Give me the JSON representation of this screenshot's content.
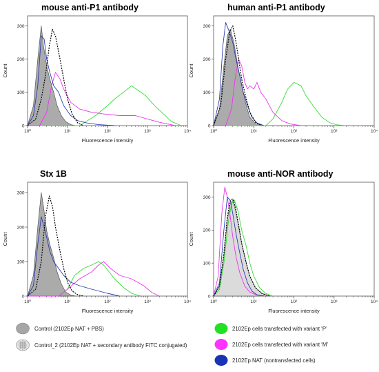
{
  "chart_data": [
    {
      "type": "area",
      "title": "mouse anti-P1 antibody",
      "xlabel": "Fluorescence intensity",
      "ylabel": "Count",
      "x_scale": "log",
      "xlim": [
        1,
        10000
      ],
      "ylim": [
        0,
        330
      ],
      "xticks": [
        "10⁰",
        "10¹",
        "10²",
        "10³",
        "10⁴"
      ],
      "yticks": [
        "0",
        "100",
        "200",
        "300"
      ],
      "series": [
        {
          "name": "Control (2102Ep NAT + PBS)",
          "key": "control",
          "x": [
            1,
            1.4,
            1.8,
            2.2,
            2.5,
            3,
            3.6,
            4.5,
            5.5,
            7,
            9,
            12,
            16
          ],
          "y": [
            0,
            60,
            200,
            300,
            240,
            180,
            140,
            100,
            60,
            30,
            12,
            3,
            0
          ]
        },
        {
          "name": "Control_2 (2102Ep NAT + secondary antibody FITC conjugated)",
          "key": "control2",
          "x": [
            1,
            1.6,
            2.2,
            2.8,
            3.5,
            4.2,
            5,
            6.5,
            8,
            10,
            13,
            18,
            25
          ],
          "y": [
            0,
            20,
            80,
            150,
            240,
            290,
            270,
            200,
            140,
            80,
            35,
            8,
            0
          ]
        },
        {
          "name": "2102Ep cells transfected with variant ‘P’",
          "key": "variantP",
          "x": [
            1,
            20,
            50,
            100,
            150,
            250,
            400,
            600,
            900,
            1500,
            2500,
            4000,
            7000
          ],
          "y": [
            0,
            0,
            30,
            60,
            80,
            100,
            120,
            105,
            90,
            60,
            35,
            12,
            0
          ]
        },
        {
          "name": "2102Ep cells transfected with variant ‘M’",
          "key": "variantM",
          "x": [
            1,
            2,
            3,
            4,
            5,
            6.5,
            8,
            12,
            20,
            40,
            80,
            200,
            500,
            1000,
            2000,
            5000
          ],
          "y": [
            0,
            0,
            40,
            120,
            160,
            140,
            110,
            70,
            50,
            40,
            35,
            30,
            30,
            20,
            10,
            0
          ]
        },
        {
          "name": "2102Ep NAT (nontransfected cells)",
          "key": "nat",
          "x": [
            1,
            1.4,
            1.8,
            2.2,
            2.6,
            3,
            3.6,
            4.5,
            6,
            8,
            12,
            18,
            30,
            60,
            150
          ],
          "y": [
            0,
            30,
            120,
            270,
            260,
            200,
            160,
            120,
            100,
            60,
            30,
            15,
            8,
            3,
            0
          ]
        }
      ]
    },
    {
      "type": "area",
      "title": "human anti-P1 antibody",
      "xlabel": "Fluorescence intensity",
      "ylabel": "Count",
      "x_scale": "log",
      "xlim": [
        1,
        10000
      ],
      "ylim": [
        0,
        330
      ],
      "xticks": [
        "10⁰",
        "10¹",
        "10²",
        "10³",
        "10⁴"
      ],
      "yticks": [
        "0",
        "100",
        "200",
        "300"
      ],
      "series": [
        {
          "name": "Control (2102Ep NAT + PBS)",
          "key": "control",
          "x": [
            1,
            1.4,
            1.8,
            2.2,
            2.6,
            3.2,
            4,
            5,
            6.5,
            8,
            11,
            16
          ],
          "y": [
            0,
            50,
            180,
            270,
            290,
            250,
            180,
            120,
            60,
            25,
            6,
            0
          ]
        },
        {
          "name": "Control_2 (2102Ep NAT + secondary antibody FITC conjugated)",
          "key": "control2",
          "x": [
            1,
            1.5,
            2,
            2.5,
            3,
            3.5,
            4.2,
            5,
            6.5,
            8,
            11,
            16
          ],
          "y": [
            0,
            60,
            200,
            280,
            300,
            260,
            200,
            140,
            80,
            40,
            10,
            0
          ]
        },
        {
          "name": "2102Ep cells transfected with variant ‘P’",
          "key": "variantP",
          "x": [
            1,
            20,
            30,
            50,
            70,
            100,
            150,
            200,
            300,
            500,
            800,
            1200,
            2000
          ],
          "y": [
            0,
            0,
            20,
            70,
            110,
            130,
            120,
            90,
            60,
            25,
            8,
            2,
            0
          ]
        },
        {
          "name": "2102Ep cells transfected with variant ‘M’",
          "key": "variantM",
          "x": [
            1,
            2,
            2.8,
            3.5,
            4.2,
            5,
            6,
            7,
            8,
            10,
            12,
            15,
            20,
            30,
            50,
            80,
            150
          ],
          "y": [
            0,
            0,
            50,
            150,
            200,
            180,
            130,
            110,
            120,
            110,
            130,
            100,
            80,
            40,
            15,
            5,
            0
          ]
        },
        {
          "name": "2102Ep NAT (nontransfected cells)",
          "key": "nat",
          "x": [
            1,
            1.4,
            1.7,
            2,
            2.5,
            3,
            3.6,
            4.5,
            5.5,
            7,
            9,
            12,
            18
          ],
          "y": [
            0,
            80,
            240,
            310,
            280,
            250,
            200,
            150,
            100,
            60,
            25,
            8,
            0
          ]
        }
      ]
    },
    {
      "type": "area",
      "title": "Stx 1B",
      "xlabel": "Fluorescence intensity",
      "ylabel": "Count",
      "x_scale": "log",
      "xlim": [
        1,
        10000
      ],
      "ylim": [
        0,
        330
      ],
      "xticks": [
        "10⁰",
        "10¹",
        "10²",
        "10³",
        "10⁴"
      ],
      "yticks": [
        "0",
        "100",
        "200",
        "300"
      ],
      "series": [
        {
          "name": "Control (2102Ep NAT + PBS)",
          "key": "control",
          "x": [
            1,
            1.4,
            1.8,
            2.2,
            2.5,
            3,
            3.6,
            4.5,
            5.5,
            7,
            9,
            12,
            16
          ],
          "y": [
            0,
            60,
            200,
            300,
            260,
            190,
            150,
            110,
            70,
            35,
            12,
            3,
            0
          ]
        },
        {
          "name": "Control_2 (2102Ep NAT + secondary antibody FITC conjugated)",
          "key": "control2",
          "x": [
            1,
            1.6,
            2.2,
            2.8,
            3.5,
            4.2,
            5,
            6.5,
            8,
            10,
            13,
            18,
            25
          ],
          "y": [
            0,
            20,
            100,
            230,
            290,
            260,
            200,
            130,
            80,
            40,
            15,
            4,
            0
          ]
        },
        {
          "name": "2102Ep cells transfected with variant ‘P’",
          "key": "variantP",
          "x": [
            1,
            6,
            10,
            15,
            25,
            40,
            60,
            80,
            110,
            150,
            250,
            400,
            700
          ],
          "y": [
            0,
            0,
            20,
            60,
            80,
            90,
            100,
            90,
            70,
            50,
            25,
            8,
            0
          ]
        },
        {
          "name": "2102Ep cells transfected with variant ‘M’",
          "key": "variantM",
          "x": [
            1,
            6,
            10,
            20,
            40,
            60,
            80,
            120,
            200,
            400,
            800,
            1300,
            2000
          ],
          "y": [
            0,
            0,
            20,
            50,
            70,
            90,
            100,
            80,
            60,
            50,
            30,
            10,
            0
          ]
        },
        {
          "name": "2102Ep NAT (nontransfected cells)",
          "key": "nat",
          "x": [
            1,
            1.4,
            1.8,
            2.2,
            2.6,
            3,
            3.6,
            4.5,
            6,
            8,
            12,
            20,
            40,
            100,
            200
          ],
          "y": [
            0,
            30,
            150,
            230,
            200,
            170,
            130,
            100,
            80,
            60,
            40,
            30,
            20,
            8,
            0
          ]
        }
      ]
    },
    {
      "type": "area",
      "title": "mouse anti-NOR antibody",
      "xlabel": "Fluorescence intensity",
      "ylabel": "Count",
      "x_scale": "log",
      "xlim": [
        1,
        10000
      ],
      "ylim": [
        0,
        345
      ],
      "xticks": [
        "10⁰",
        "10¹",
        "10²",
        "10³",
        "10⁴"
      ],
      "yticks": [
        "0",
        "100",
        "200",
        "300"
      ],
      "series": [
        {
          "name": "Control (2102Ep NAT + PBS)",
          "key": "control",
          "x": [
            1,
            1.4,
            1.8,
            2.2,
            2.6,
            3,
            3.5,
            4.2,
            5,
            6.5,
            8,
            11,
            16,
            25
          ],
          "y": [
            0,
            30,
            120,
            230,
            280,
            290,
            260,
            210,
            160,
            100,
            60,
            25,
            8,
            0
          ]
        },
        {
          "name": "Control_2 (2102Ep NAT + secondary antibody FITC conjugated)",
          "key": "control2",
          "x": [
            1,
            1.4,
            1.8,
            2.2,
            2.6,
            3,
            3.5,
            4.2,
            5,
            6.5,
            8,
            11,
            16,
            25
          ],
          "y": [
            0,
            30,
            130,
            240,
            290,
            295,
            270,
            215,
            160,
            100,
            60,
            25,
            8,
            0
          ]
        },
        {
          "name": "2102Ep cells transfected with variant ‘P’",
          "key": "variantP",
          "x": [
            1,
            1.4,
            1.8,
            2.3,
            2.8,
            3.3,
            4,
            5,
            6.5,
            8,
            10,
            14,
            20,
            30
          ],
          "y": [
            0,
            20,
            100,
            220,
            280,
            290,
            260,
            200,
            150,
            100,
            60,
            25,
            8,
            0
          ]
        },
        {
          "name": "2102Ep cells transfected with variant ‘M’",
          "key": "variantM",
          "x": [
            1,
            1.3,
            1.6,
            1.9,
            2.2,
            2.6,
            3,
            3.6,
            4.5,
            6,
            8,
            12,
            20
          ],
          "y": [
            0,
            60,
            250,
            330,
            300,
            240,
            180,
            120,
            70,
            30,
            12,
            3,
            0
          ]
        },
        {
          "name": "2102Ep NAT (nontransfected cells)",
          "key": "nat",
          "x": [
            1,
            1.4,
            1.8,
            2.2,
            2.6,
            3,
            3.6,
            4.5,
            5.5,
            7,
            9,
            12,
            18
          ],
          "y": [
            0,
            40,
            200,
            300,
            290,
            250,
            190,
            130,
            80,
            40,
            15,
            4,
            0
          ]
        }
      ]
    }
  ],
  "legend": {
    "items": [
      {
        "key": "control",
        "label": "Control (2102Ep NAT + PBS)",
        "color": "#a6a6a6"
      },
      {
        "key": "control2",
        "label": "Control_2 (2102Ep NAT  + secondary antibody FITC conjugated)",
        "color": "#cfcfcf"
      },
      {
        "key": "variantP",
        "label": "2102Ep cells transfected with variant ‘P’",
        "color": "#22e022"
      },
      {
        "key": "variantM",
        "label": "2102Ep cells transfected with variant ‘M’",
        "color": "#ff33ff"
      },
      {
        "key": "nat",
        "label": "2102Ep NAT (nontransfected cells)",
        "color": "#1a33b3"
      }
    ]
  },
  "colors": {
    "control_fill": "#a6a6a6",
    "control_fill_light": "#d9d9d9",
    "control2_line": "#000000",
    "variantP": "#33dd33",
    "variantM": "#ee33ee",
    "nat": "#2a3cb0"
  }
}
